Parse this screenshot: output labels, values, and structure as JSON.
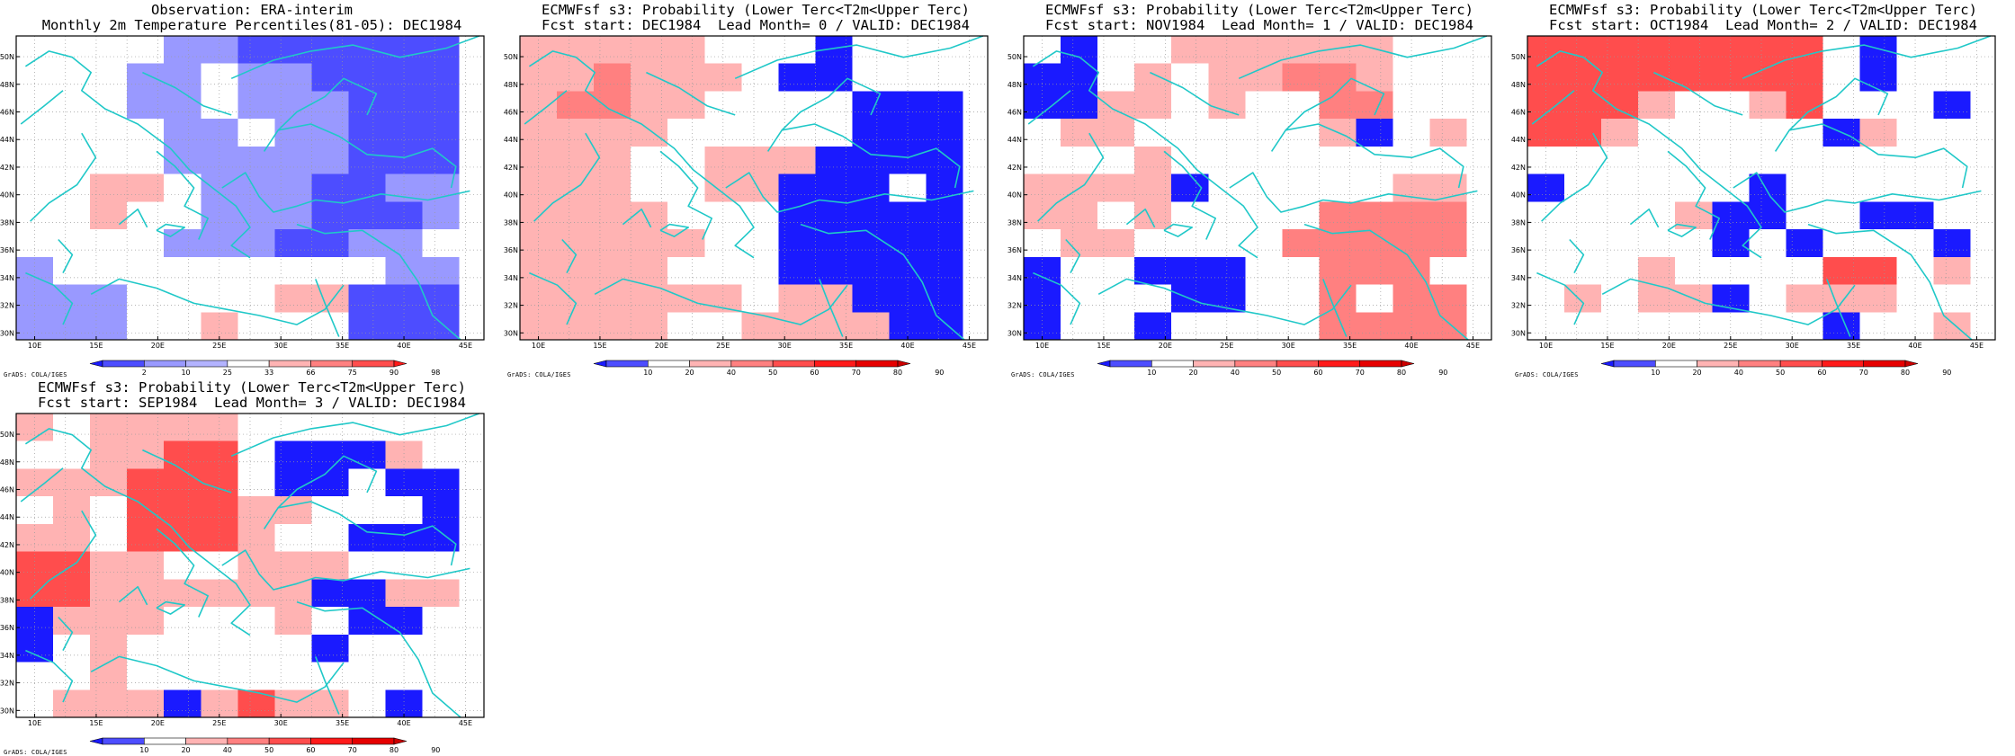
{
  "page": {
    "credit": "GrADS: COLA/IGES"
  },
  "colors": {
    "blue_strong": "#1a1aff",
    "blue_mid": "#4d4dff",
    "blue_light": "#9999ff",
    "blue_pale": "#b3b3ff",
    "red_pale": "#ffb3b3",
    "red_light": "#ff8080",
    "red_mid": "#ff4d4d",
    "red_strong": "#ff1a1a",
    "coast": "#20c8c8",
    "grid": "#9a9a9a"
  },
  "chart_data": [
    {
      "type": "heatmap",
      "title": "Observation: ERA-interim",
      "subtitle": "Monthly 2m Temperature Percentiles(81-05): DEC1984",
      "xlim": [
        8.5,
        46.5
      ],
      "ylim": [
        29.5,
        51.5
      ],
      "xticks": [
        "10E",
        "15E",
        "20E",
        "25E",
        "30E",
        "35E",
        "40E",
        "45E"
      ],
      "yticks": [
        "30N",
        "32N",
        "34N",
        "36N",
        "38N",
        "40N",
        "42N",
        "44N",
        "46N",
        "48N",
        "50N"
      ],
      "colorbar": {
        "labels": [
          "2",
          "10",
          "25",
          "33",
          "66",
          "75",
          "90",
          "98"
        ],
        "colors": [
          "#1a1aff",
          "#4d4dff",
          "#9999ff",
          "#b3b3ff",
          "#ffffff",
          "#ffb3b3",
          "#ff8080",
          "#ff4d4d",
          "#ff1a1a"
        ]
      },
      "rows": [
        "....BBCCCCCC",
        "...BB.BBCCCC",
        "...BB.BBBCCC",
        "....BB.BBCCC",
        "....BBBBBCCC",
        "..rr.BBBCCBB",
        "..r..BBBCCCB",
        "....BBBCCBB.",
        "B.........BB",
        "BBB....rrCCC",
        "BBB..r...CCC"
      ],
      "key": {
        ".": 4,
        "B": 2,
        "C": 1,
        "r": 5
      }
    },
    {
      "type": "heatmap",
      "title": "ECMWFsf s3: Probability (Lower Terc<T2m<Upper Terc)",
      "subtitle": "Fcst start: DEC1984  Lead Month= 0 / VALID: DEC1984",
      "xlim": [
        8.5,
        46.5
      ],
      "ylim": [
        29.5,
        51.5
      ],
      "xticks": [
        "10E",
        "15E",
        "20E",
        "25E",
        "30E",
        "35E",
        "40E",
        "45E"
      ],
      "yticks": [
        "30N",
        "32N",
        "34N",
        "36N",
        "38N",
        "40N",
        "42N",
        "44N",
        "46N",
        "48N",
        "50N"
      ],
      "colorbar": {
        "labels": [
          "10",
          "20",
          "40",
          "50",
          "60",
          "70",
          "80",
          "90"
        ],
        "colors": [
          "#1a1aff",
          "#4d4dff",
          "#ffffff",
          "#ffb3b3",
          "#ff8080",
          "#ff4d4d",
          "#ff1a1a",
          "#e60000",
          "#cc0000"
        ]
      },
      "rows": [
        "rrrrr...B...",
        "rrRrrr.BB...",
        "rRRrr....BBB",
        "rrrr.....BBB",
        "rrr..rrrBBBB",
        "rrr..rrBBB.B",
        "rrrr...BBBBB",
        "rrrrr..BBBBB",
        "rrrr...BBBBB",
        "rrrrrr.rrBBB",
        "rrrr..rrrrBB"
      ],
      "key": {
        ".": 2,
        "B": 0,
        "r": 3,
        "R": 4
      }
    },
    {
      "type": "heatmap",
      "title": "ECMWFsf s3: Probability (Lower Terc<T2m<Upper Terc)",
      "subtitle": "Fcst start: NOV1984  Lead Month= 1 / VALID: DEC1984",
      "xlim": [
        8.5,
        46.5
      ],
      "ylim": [
        29.5,
        51.5
      ],
      "xticks": [
        "10E",
        "15E",
        "20E",
        "25E",
        "30E",
        "35E",
        "40E",
        "45E"
      ],
      "yticks": [
        "30N",
        "32N",
        "34N",
        "36N",
        "38N",
        "40N",
        "42N",
        "44N",
        "46N",
        "48N",
        "50N"
      ],
      "colorbar": {
        "labels": [
          "10",
          "20",
          "40",
          "50",
          "60",
          "70",
          "80",
          "90"
        ],
        "colors": [
          "#1a1aff",
          "#4d4dff",
          "#ffffff",
          "#ffb3b3",
          "#ff8080",
          "#ff4d4d",
          "#ff1a1a",
          "#e60000",
          "#cc0000"
        ]
      },
      "rows": [
        ".B..rrrrrr..",
        "BB.r.rrRRr..",
        "BBrr.r..RR..",
        ".rr.....rB.r",
        "...r........",
        "rrrrB.....rr",
        "rr.r....RRRR",
        ".rr....RRRRR",
        "B..BBB..RRR.",
        "B...BB..R.RR",
        "B..B....RRRR"
      ],
      "key": {
        ".": 2,
        "B": 0,
        "r": 3,
        "R": 4
      }
    },
    {
      "type": "heatmap",
      "title": "ECMWFsf s3: Probability (Lower Terc<T2m<Upper Terc)",
      "subtitle": "Fcst start: OCT1984  Lead Month= 2 / VALID: DEC1984",
      "xlim": [
        8.5,
        46.5
      ],
      "ylim": [
        29.5,
        51.5
      ],
      "xticks": [
        "10E",
        "15E",
        "20E",
        "25E",
        "30E",
        "35E",
        "40E",
        "45E"
      ],
      "yticks": [
        "30N",
        "32N",
        "34N",
        "36N",
        "38N",
        "40N",
        "42N",
        "44N",
        "46N",
        "48N",
        "50N"
      ],
      "colorbar": {
        "labels": [
          "10",
          "20",
          "40",
          "50",
          "60",
          "70",
          "80",
          "90"
        ],
        "colors": [
          "#1a1aff",
          "#4d4dff",
          "#ffffff",
          "#ffb3b3",
          "#ff8080",
          "#ff4d4d",
          "#ff1a1a",
          "#e60000",
          "#cc0000"
        ]
      },
      "rows": [
        "RRRRRRRR.B..",
        "RRRRRRRR.B..",
        "RRRr..rR...B",
        "RRr.....Br..",
        "............",
        "B.....B.....",
        "....rBB..BB.",
        ".....B.B...B",
        "...r....RR.r",
        ".r.rrB.rrr..",
        "........B..r"
      ],
      "key": {
        ".": 2,
        "B": 0,
        "r": 3,
        "R": 5
      }
    },
    {
      "type": "heatmap",
      "title": "ECMWFsf s3: Probability (Lower Terc<T2m<Upper Terc)",
      "subtitle": "Fcst start: SEP1984  Lead Month= 3 / VALID: DEC1984",
      "xlim": [
        8.5,
        46.5
      ],
      "ylim": [
        29.5,
        51.5
      ],
      "xticks": [
        "10E",
        "15E",
        "20E",
        "25E",
        "30E",
        "35E",
        "40E",
        "45E"
      ],
      "yticks": [
        "30N",
        "32N",
        "34N",
        "36N",
        "38N",
        "40N",
        "42N",
        "44N",
        "46N",
        "48N",
        "50N"
      ],
      "colorbar": {
        "labels": [
          "10",
          "20",
          "40",
          "50",
          "60",
          "70",
          "80",
          "90"
        ],
        "colors": [
          "#1a1aff",
          "#4d4dff",
          "#ffffff",
          "#ffb3b3",
          "#ff8080",
          "#ff4d4d",
          "#ff1a1a",
          "#e60000",
          "#cc0000"
        ]
      },
      "rows": [
        "r.rrrr......",
        "..rrRR.BBBr.",
        "rrrRRR.BB.BB",
        ".r.RRRrr...B",
        "rr.RRRr..BBB",
        "RRrr..rrr...",
        "RRrrrrrrBBrr",
        "Brrr...r.BB.",
        "B.r.....B...",
        "..r.........",
        ".rrrBrRrr.B."
      ],
      "key": {
        ".": 2,
        "B": 0,
        "r": 3,
        "R": 5
      }
    }
  ]
}
